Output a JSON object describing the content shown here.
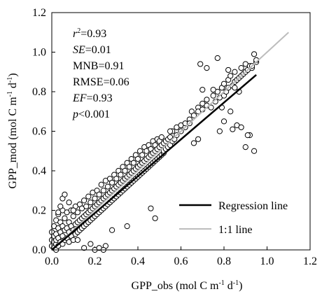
{
  "chart_data": {
    "type": "scatter",
    "title": "",
    "xlabel": {
      "base": "GPP_obs (mol C m",
      "sup1": "-1",
      "mid": " d",
      "sup2": "-1",
      "end": ")"
    },
    "ylabel": {
      "base": "GPP_mod (mol C m",
      "sup1": "-1",
      "mid": " d",
      "sup2": "-1",
      "end": ")"
    },
    "xlim": [
      0.0,
      1.2
    ],
    "ylim": [
      0.0,
      1.2
    ],
    "xticks": [
      "0.0",
      "0.2",
      "0.4",
      "0.6",
      "0.8",
      "1.0",
      "1.2"
    ],
    "yticks": [
      "0.0",
      "0.2",
      "0.4",
      "0.6",
      "0.8",
      "1.0",
      "1.2"
    ],
    "grid": false,
    "stats": [
      {
        "key": "r2",
        "label": "r",
        "sup": "2",
        "italic": true,
        "value": "=0.93"
      },
      {
        "key": "se",
        "label": "SE",
        "italic": true,
        "value": "=0.01"
      },
      {
        "key": "mnb",
        "label": "MNB",
        "italic": false,
        "value": "=0.91"
      },
      {
        "key": "rmse",
        "label": "RMSE",
        "italic": false,
        "value": "=0.06"
      },
      {
        "key": "ef",
        "label": "EF",
        "italic": true,
        "value": "=0.93"
      },
      {
        "key": "p",
        "label": "p",
        "italic": true,
        "value": "<0.001"
      }
    ],
    "legend": {
      "position": "lower-right",
      "entries": [
        {
          "label": "Regression line",
          "color": "#000000"
        },
        {
          "label": "1:1 line",
          "color": "#bdbdbd"
        }
      ]
    },
    "regression_line": {
      "x": [
        0.0,
        0.95
      ],
      "y": [
        0.0,
        0.885
      ]
    },
    "identity_line": {
      "x": [
        0.0,
        1.1
      ],
      "y": [
        0.0,
        1.1
      ]
    },
    "marker": {
      "shape": "open-circle",
      "color": "#000000"
    },
    "series": [
      {
        "x": [
          0.0,
          0.0,
          0.0,
          0.01,
          0.01,
          0.01,
          0.01,
          0.02,
          0.02,
          0.02,
          0.02,
          0.02,
          0.03,
          0.03,
          0.03,
          0.03,
          0.04,
          0.04,
          0.04,
          0.05,
          0.05,
          0.05,
          0.05,
          0.06,
          0.06,
          0.06,
          0.07,
          0.07,
          0.07,
          0.08,
          0.08,
          0.08,
          0.09,
          0.09,
          0.09,
          0.1,
          0.1,
          0.1,
          0.11,
          0.11,
          0.11,
          0.12,
          0.12,
          0.12,
          0.13,
          0.13,
          0.13,
          0.14,
          0.14,
          0.14,
          0.15,
          0.15,
          0.15,
          0.16,
          0.16,
          0.16,
          0.17,
          0.17,
          0.17,
          0.18,
          0.18,
          0.18,
          0.19,
          0.19,
          0.19,
          0.2,
          0.2,
          0.2,
          0.21,
          0.21,
          0.21,
          0.22,
          0.22,
          0.22,
          0.23,
          0.23,
          0.23,
          0.24,
          0.24,
          0.24,
          0.25,
          0.25,
          0.25,
          0.26,
          0.26,
          0.26,
          0.27,
          0.27,
          0.27,
          0.28,
          0.28,
          0.28,
          0.29,
          0.29,
          0.29,
          0.3,
          0.3,
          0.3,
          0.31,
          0.31,
          0.31,
          0.32,
          0.32,
          0.32,
          0.33,
          0.33,
          0.33,
          0.34,
          0.34,
          0.34,
          0.35,
          0.35,
          0.35,
          0.36,
          0.36,
          0.36,
          0.37,
          0.37,
          0.37,
          0.38,
          0.38,
          0.38,
          0.39,
          0.39,
          0.39,
          0.4,
          0.4,
          0.4,
          0.41,
          0.41,
          0.41,
          0.42,
          0.42,
          0.42,
          0.43,
          0.43,
          0.43,
          0.44,
          0.44,
          0.44,
          0.45,
          0.45,
          0.45,
          0.46,
          0.46,
          0.46,
          0.47,
          0.47,
          0.47,
          0.48,
          0.48,
          0.48,
          0.49,
          0.49,
          0.49,
          0.5,
          0.5,
          0.5,
          0.51,
          0.51,
          0.51,
          0.52,
          0.52,
          0.52,
          0.53,
          0.53,
          0.54,
          0.54,
          0.55,
          0.55,
          0.56,
          0.56,
          0.57,
          0.58,
          0.58,
          0.6,
          0.6,
          0.62,
          0.62,
          0.64,
          0.65,
          0.66,
          0.68,
          0.68,
          0.7,
          0.7,
          0.72,
          0.72,
          0.74,
          0.75,
          0.76,
          0.77,
          0.78,
          0.79,
          0.8,
          0.8,
          0.81,
          0.82,
          0.82,
          0.83,
          0.84,
          0.85,
          0.85,
          0.86,
          0.87,
          0.88,
          0.88,
          0.89,
          0.9,
          0.9,
          0.91,
          0.92,
          0.93,
          0.93,
          0.94,
          0.95,
          0.95,
          0.82,
          0.84,
          0.86,
          0.9,
          0.92,
          0.88,
          0.78,
          0.8,
          0.94,
          0.91,
          0.87,
          0.85,
          0.83,
          0.79,
          0.77,
          0.69,
          0.72,
          0.75,
          0.64,
          0.7,
          0.68,
          0.66,
          0.55,
          0.46,
          0.48,
          0.2,
          0.22,
          0.25,
          0.18,
          0.24,
          0.15,
          0.12,
          0.05,
          0.08,
          0.1,
          0.04,
          0.03,
          0.06,
          0.28,
          0.35
        ],
        "y": [
          0.02,
          0.05,
          0.09,
          0.01,
          0.04,
          0.12,
          0.07,
          0.0,
          0.03,
          0.08,
          0.15,
          0.05,
          0.02,
          0.06,
          0.11,
          0.18,
          0.04,
          0.09,
          0.14,
          0.03,
          0.07,
          0.12,
          0.2,
          0.05,
          0.1,
          0.16,
          0.06,
          0.11,
          0.19,
          0.04,
          0.09,
          0.14,
          0.07,
          0.12,
          0.2,
          0.05,
          0.1,
          0.17,
          0.08,
          0.13,
          0.22,
          0.09,
          0.14,
          0.19,
          0.1,
          0.15,
          0.23,
          0.11,
          0.16,
          0.21,
          0.12,
          0.17,
          0.25,
          0.13,
          0.18,
          0.22,
          0.14,
          0.19,
          0.27,
          0.15,
          0.2,
          0.24,
          0.16,
          0.21,
          0.29,
          0.17,
          0.22,
          0.26,
          0.18,
          0.23,
          0.3,
          0.19,
          0.24,
          0.28,
          0.2,
          0.25,
          0.33,
          0.21,
          0.26,
          0.3,
          0.22,
          0.27,
          0.35,
          0.23,
          0.28,
          0.32,
          0.24,
          0.29,
          0.36,
          0.25,
          0.3,
          0.34,
          0.26,
          0.31,
          0.38,
          0.27,
          0.32,
          0.36,
          0.28,
          0.33,
          0.4,
          0.29,
          0.34,
          0.38,
          0.3,
          0.35,
          0.42,
          0.31,
          0.36,
          0.4,
          0.32,
          0.37,
          0.44,
          0.33,
          0.38,
          0.42,
          0.34,
          0.39,
          0.46,
          0.35,
          0.4,
          0.44,
          0.36,
          0.41,
          0.48,
          0.37,
          0.42,
          0.46,
          0.38,
          0.43,
          0.5,
          0.39,
          0.44,
          0.48,
          0.4,
          0.45,
          0.52,
          0.41,
          0.46,
          0.5,
          0.42,
          0.47,
          0.53,
          0.43,
          0.48,
          0.51,
          0.44,
          0.49,
          0.55,
          0.45,
          0.5,
          0.53,
          0.46,
          0.51,
          0.56,
          0.47,
          0.52,
          0.55,
          0.48,
          0.53,
          0.57,
          0.49,
          0.54,
          0.5,
          0.55,
          0.51,
          0.56,
          0.52,
          0.57,
          0.53,
          0.55,
          0.6,
          0.56,
          0.62,
          0.58,
          0.63,
          0.6,
          0.62,
          0.64,
          0.66,
          0.7,
          0.68,
          0.72,
          0.7,
          0.74,
          0.71,
          0.73,
          0.76,
          0.72,
          0.78,
          0.75,
          0.8,
          0.77,
          0.82,
          0.78,
          0.84,
          0.8,
          0.86,
          0.82,
          0.88,
          0.83,
          0.85,
          0.9,
          0.86,
          0.87,
          0.92,
          0.88,
          0.89,
          0.94,
          0.9,
          0.91,
          0.93,
          0.92,
          0.93,
          0.99,
          0.95,
          0.96,
          0.91,
          0.61,
          0.63,
          0.52,
          0.58,
          0.62,
          0.6,
          0.65,
          0.5,
          0.58,
          0.8,
          0.82,
          0.7,
          0.72,
          0.97,
          0.94,
          0.92,
          0.81,
          0.64,
          0.81,
          0.56,
          0.54,
          0.6,
          0.21,
          0.16,
          0.0,
          0.01,
          0.02,
          0.03,
          0.0,
          0.01,
          0.05,
          0.26,
          0.24,
          0.2,
          0.22,
          0.19,
          0.28,
          0.1,
          0.12
        ]
      }
    ]
  }
}
